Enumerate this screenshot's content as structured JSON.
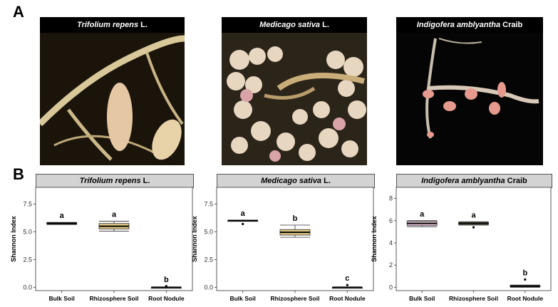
{
  "panels": {
    "a": "A",
    "b": "B"
  },
  "photos": [
    {
      "species": "Trifolium repens",
      "authority": "L."
    },
    {
      "species": "Medicago sativa",
      "authority": "L."
    },
    {
      "species": "Indigofera amblyantha",
      "authority": "Craib"
    }
  ],
  "colors": {
    "bulk": "#e8c6d8",
    "rhizo": "#e0c884",
    "nodule": "#a9b7de",
    "median": "#000000",
    "strip": "#d3d3d3"
  },
  "chart_data": [
    {
      "type": "box",
      "title_species": "Trifolium repens",
      "title_authority": "L.",
      "ylabel": "Shannon Index",
      "categories": [
        "Bulk Soil",
        "Rhizosphere Soil",
        "Root Nodule"
      ],
      "yticks": [
        "0.0",
        "2.5",
        "5.0",
        "7.5"
      ],
      "ylim": [
        -0.3,
        9.0
      ],
      "boxes": [
        {
          "min": 5.65,
          "q1": 5.68,
          "median": 5.75,
          "q3": 5.82,
          "max": 5.85,
          "outliers": [],
          "letter": "a"
        },
        {
          "min": 5.05,
          "q1": 5.25,
          "median": 5.5,
          "q3": 5.75,
          "max": 5.95,
          "outliers": [],
          "letter": "a"
        },
        {
          "min": 0.0,
          "q1": 0.0,
          "median": 0.0,
          "q3": 0.0,
          "max": 0.0,
          "outliers": [
            0.1
          ],
          "letter": "b"
        }
      ]
    },
    {
      "type": "box",
      "title_species": "Medicago sativa",
      "title_authority": "L.",
      "ylabel": "Shannon Index",
      "categories": [
        "Bulk Soil",
        "Rhizosphere Soil",
        "Root Nodule"
      ],
      "yticks": [
        "0.0",
        "2.5",
        "5.0",
        "7.5"
      ],
      "ylim": [
        -0.3,
        9.0
      ],
      "boxes": [
        {
          "min": 5.95,
          "q1": 5.97,
          "median": 6.0,
          "q3": 6.03,
          "max": 6.05,
          "outliers": [
            5.7
          ],
          "letter": "a"
        },
        {
          "min": 4.5,
          "q1": 4.7,
          "median": 4.95,
          "q3": 5.2,
          "max": 5.6,
          "outliers": [],
          "letter": "b"
        },
        {
          "min": 0.0,
          "q1": 0.0,
          "median": 0.0,
          "q3": 0.0,
          "max": 0.0,
          "outliers": [
            0.2
          ],
          "letter": "c"
        }
      ]
    },
    {
      "type": "box",
      "title_species": "Indigofera amblyantha",
      "title_authority": "Craib",
      "ylabel": "Shannon Index",
      "categories": [
        "Bulk Soil",
        "Rhizosphere Soil",
        "Root Nodule"
      ],
      "yticks": [
        "0",
        "2",
        "4",
        "6",
        "8"
      ],
      "ylim": [
        -0.3,
        9.0
      ],
      "boxes": [
        {
          "min": 5.45,
          "q1": 5.55,
          "median": 5.75,
          "q3": 5.95,
          "max": 6.0,
          "outliers": [],
          "letter": "a"
        },
        {
          "min": 5.6,
          "q1": 5.65,
          "median": 5.75,
          "q3": 5.85,
          "max": 5.9,
          "outliers": [
            5.4
          ],
          "letter": "a"
        },
        {
          "min": 0.0,
          "q1": 0.05,
          "median": 0.1,
          "q3": 0.15,
          "max": 0.2,
          "outliers": [
            0.7
          ],
          "letter": "b"
        }
      ]
    }
  ]
}
